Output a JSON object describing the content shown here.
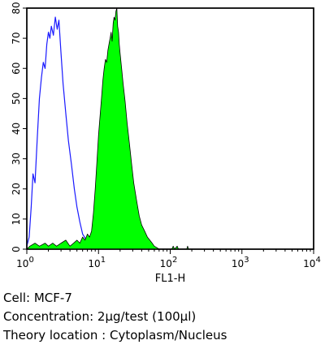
{
  "chart_data": {
    "type": "area",
    "title": "",
    "xlabel": "FL1-H",
    "ylabel": "",
    "xscale": "log",
    "xlim": [
      1,
      10000
    ],
    "ylim": [
      0,
      80
    ],
    "x_tick_labels": [
      {
        "base": "10",
        "exp": "0"
      },
      {
        "base": "10",
        "exp": "1"
      },
      {
        "base": "10",
        "exp": "2"
      },
      {
        "base": "10",
        "exp": "3"
      },
      {
        "base": "10",
        "exp": "4"
      }
    ],
    "x_tick_values": [
      1,
      10,
      100,
      1000,
      10000
    ],
    "y_tick_labels": [
      "0",
      "10",
      "20",
      "30",
      "40",
      "50",
      "60",
      "70",
      "80"
    ],
    "y_tick_values": [
      0,
      10,
      20,
      30,
      40,
      50,
      60,
      70,
      80
    ],
    "series": [
      {
        "style": "outline",
        "color": "#1a1aff",
        "points": [
          [
            1.0,
            1
          ],
          [
            1.08,
            4
          ],
          [
            1.15,
            14
          ],
          [
            1.22,
            25
          ],
          [
            1.3,
            22
          ],
          [
            1.4,
            37
          ],
          [
            1.5,
            50
          ],
          [
            1.6,
            57
          ],
          [
            1.7,
            62
          ],
          [
            1.8,
            60
          ],
          [
            1.9,
            68
          ],
          [
            2.0,
            72
          ],
          [
            2.1,
            70
          ],
          [
            2.2,
            74
          ],
          [
            2.35,
            71
          ],
          [
            2.5,
            77
          ],
          [
            2.65,
            73
          ],
          [
            2.8,
            76
          ],
          [
            3.0,
            65
          ],
          [
            3.2,
            55
          ],
          [
            3.5,
            45
          ],
          [
            3.8,
            36
          ],
          [
            4.2,
            28
          ],
          [
            4.6,
            20
          ],
          [
            5.0,
            14
          ],
          [
            5.5,
            9
          ],
          [
            6.0,
            5
          ],
          [
            6.8,
            3
          ],
          [
            7.5,
            2
          ],
          [
            8.5,
            1
          ],
          [
            10,
            0.5
          ],
          [
            12,
            0.2
          ],
          [
            15,
            0
          ]
        ]
      },
      {
        "style": "filled",
        "color": "#00ff00",
        "points": [
          [
            1.0,
            0
          ],
          [
            1.1,
            1
          ],
          [
            1.3,
            2
          ],
          [
            1.5,
            1
          ],
          [
            1.8,
            2
          ],
          [
            2.0,
            1
          ],
          [
            2.3,
            2
          ],
          [
            2.6,
            1
          ],
          [
            3.0,
            2
          ],
          [
            3.5,
            3
          ],
          [
            4.0,
            1
          ],
          [
            4.5,
            2
          ],
          [
            5.0,
            3
          ],
          [
            5.5,
            2
          ],
          [
            6.0,
            4
          ],
          [
            6.5,
            3
          ],
          [
            7.0,
            5
          ],
          [
            7.5,
            4
          ],
          [
            8.0,
            6
          ],
          [
            8.5,
            12
          ],
          [
            9.0,
            20
          ],
          [
            9.5,
            29
          ],
          [
            10.0,
            38
          ],
          [
            10.5,
            44
          ],
          [
            11.0,
            50
          ],
          [
            11.5,
            56
          ],
          [
            12.0,
            60
          ],
          [
            12.5,
            63
          ],
          [
            13.0,
            62
          ],
          [
            13.5,
            66
          ],
          [
            14.0,
            68
          ],
          [
            14.5,
            70
          ],
          [
            15.0,
            72
          ],
          [
            15.5,
            69
          ],
          [
            16.0,
            75
          ],
          [
            16.5,
            77
          ],
          [
            17.0,
            76
          ],
          [
            17.5,
            79
          ],
          [
            18.0,
            80
          ],
          [
            18.5,
            74
          ],
          [
            19.0,
            72
          ],
          [
            19.5,
            68
          ],
          [
            20.0,
            65
          ],
          [
            21.0,
            60
          ],
          [
            22.0,
            55
          ],
          [
            23.5,
            49
          ],
          [
            25.0,
            42
          ],
          [
            27.0,
            35
          ],
          [
            29.0,
            28
          ],
          [
            31.0,
            22
          ],
          [
            34.0,
            16
          ],
          [
            37.0,
            11
          ],
          [
            40.0,
            8
          ],
          [
            44.0,
            6
          ],
          [
            48.0,
            4
          ],
          [
            52.0,
            3
          ],
          [
            56.0,
            2
          ],
          [
            60.0,
            1
          ],
          [
            65.0,
            0.5
          ],
          [
            70,
            0
          ],
          [
            105,
            0
          ],
          [
            110,
            1
          ],
          [
            115,
            0
          ],
          [
            125,
            1
          ],
          [
            130,
            0
          ],
          [
            170,
            0
          ],
          [
            175,
            1
          ],
          [
            180,
            0
          ],
          [
            10000,
            0
          ]
        ]
      }
    ]
  },
  "captions": {
    "cell": "Cell: MCF-7",
    "concentration": "Concentration: 2µg/test (100µl)",
    "theory_location": "Theory location : Cytoplasm/Nucleus"
  }
}
